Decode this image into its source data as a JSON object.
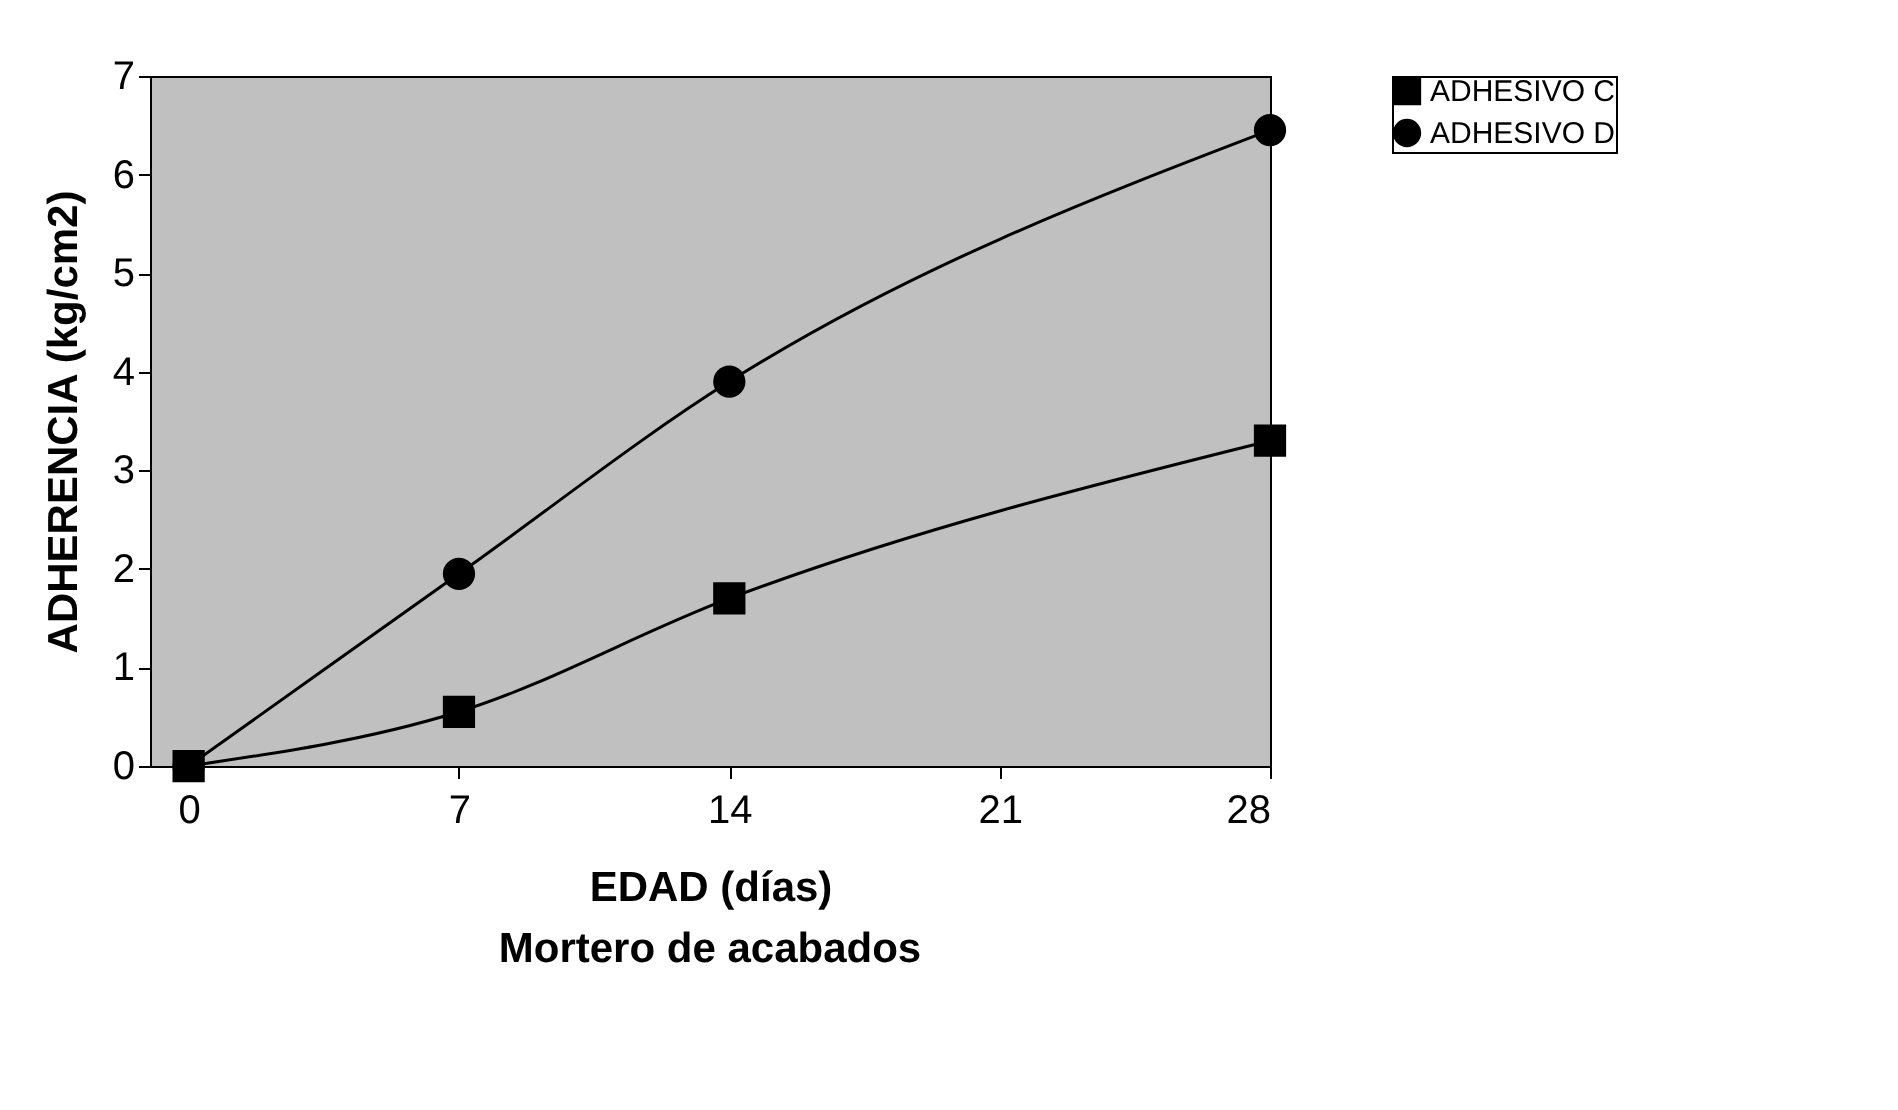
{
  "chart_data": {
    "type": "line",
    "title": "Mortero de acabados",
    "xlabel": "EDAD (días)",
    "ylabel": "ADHERENCIA (kg/cm2)",
    "x": [
      0,
      7,
      14,
      28
    ],
    "series": [
      {
        "name": "ADHESIVO C",
        "color": "#000000",
        "marker": "square",
        "values": [
          0,
          0.55,
          1.7,
          3.3
        ]
      },
      {
        "name": "ADHESIVO D",
        "color": "#000000",
        "marker": "circle",
        "values": [
          0,
          1.95,
          3.9,
          6.45
        ]
      }
    ],
    "xlim": [
      -1,
      28
    ],
    "xticks": [
      0,
      7,
      14,
      21,
      28
    ],
    "ylim": [
      0,
      7
    ],
    "yticks": [
      0,
      1,
      2,
      3,
      4,
      5,
      6,
      7
    ],
    "grid": false,
    "legend": "right",
    "line_style": "solid"
  }
}
